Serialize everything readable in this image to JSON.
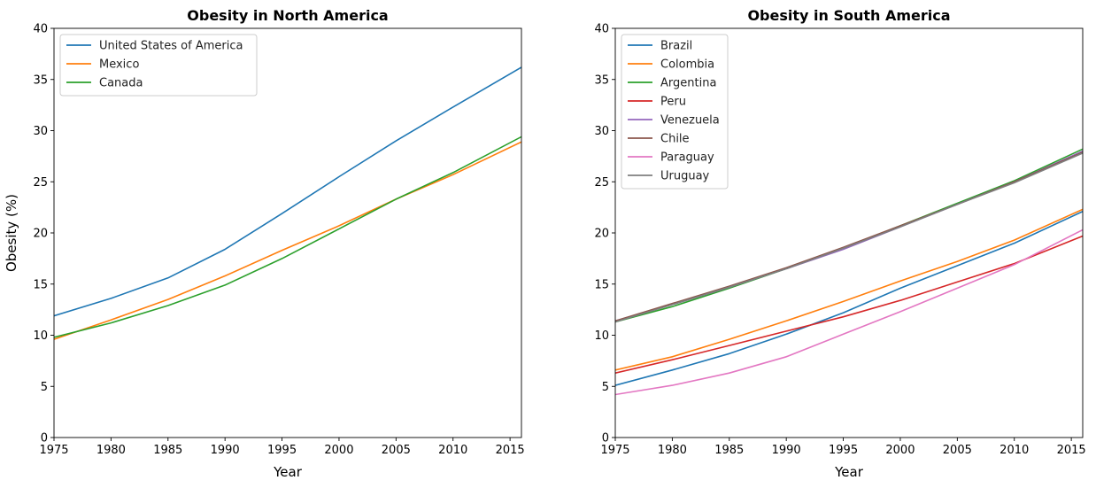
{
  "chart_data": [
    {
      "type": "line",
      "title": "Obesity in North America",
      "xlabel": "Year",
      "ylabel": "Obesity (%)",
      "xlim": [
        1975,
        2016
      ],
      "ylim": [
        0,
        40
      ],
      "xticks": [
        1975,
        1980,
        1985,
        1990,
        1995,
        2000,
        2005,
        2010,
        2015
      ],
      "yticks": [
        0,
        5,
        10,
        15,
        20,
        25,
        30,
        35,
        40
      ],
      "grid": false,
      "legend": "top-left",
      "x": [
        1975,
        1980,
        1985,
        1990,
        1995,
        2000,
        2005,
        2010,
        2016
      ],
      "series": [
        {
          "name": "United States of America",
          "color": "#1f77b4",
          "values": [
            11.9,
            13.6,
            15.6,
            18.4,
            21.9,
            25.5,
            29.0,
            32.3,
            36.2
          ]
        },
        {
          "name": "Mexico",
          "color": "#ff7f0e",
          "values": [
            9.6,
            11.5,
            13.5,
            15.8,
            18.3,
            20.7,
            23.3,
            25.7,
            28.9
          ]
        },
        {
          "name": "Canada",
          "color": "#2ca02c",
          "values": [
            9.8,
            11.2,
            12.9,
            14.9,
            17.5,
            20.4,
            23.3,
            25.9,
            29.4
          ]
        }
      ]
    },
    {
      "type": "line",
      "title": "Obesity in South America",
      "xlabel": "Year",
      "ylabel": "",
      "xlim": [
        1975,
        2016
      ],
      "ylim": [
        0,
        40
      ],
      "xticks": [
        1975,
        1980,
        1985,
        1990,
        1995,
        2000,
        2005,
        2010,
        2015
      ],
      "yticks": [
        0,
        5,
        10,
        15,
        20,
        25,
        30,
        35,
        40
      ],
      "grid": false,
      "legend": "top-left",
      "x": [
        1975,
        1980,
        1985,
        1990,
        1995,
        2000,
        2005,
        2010,
        2016
      ],
      "series": [
        {
          "name": "Brazil",
          "color": "#1f77b4",
          "values": [
            5.1,
            6.6,
            8.2,
            10.1,
            12.2,
            14.6,
            16.8,
            19.0,
            22.1
          ]
        },
        {
          "name": "Colombia",
          "color": "#ff7f0e",
          "values": [
            6.6,
            7.9,
            9.6,
            11.4,
            13.3,
            15.3,
            17.2,
            19.3,
            22.3
          ]
        },
        {
          "name": "Argentina",
          "color": "#2ca02c",
          "values": [
            11.3,
            12.8,
            14.6,
            16.5,
            18.5,
            20.7,
            22.9,
            25.1,
            28.2
          ]
        },
        {
          "name": "Peru",
          "color": "#d62728",
          "values": [
            6.3,
            7.6,
            9.0,
            10.4,
            11.8,
            13.4,
            15.2,
            17.0,
            19.7
          ]
        },
        {
          "name": "Venezuela",
          "color": "#9467bd",
          "values": [
            11.4,
            13.0,
            14.7,
            16.5,
            18.4,
            20.6,
            22.8,
            25.0,
            28.0
          ]
        },
        {
          "name": "Chile",
          "color": "#8c564b",
          "values": [
            11.4,
            13.1,
            14.8,
            16.6,
            18.6,
            20.7,
            22.8,
            25.0,
            27.9
          ]
        },
        {
          "name": "Paraguay",
          "color": "#e377c2",
          "values": [
            4.2,
            5.1,
            6.3,
            7.9,
            10.1,
            12.3,
            14.6,
            16.9,
            20.3
          ]
        },
        {
          "name": "Uruguay",
          "color": "#7f7f7f",
          "values": [
            11.3,
            13.0,
            14.7,
            16.5,
            18.5,
            20.6,
            22.8,
            24.9,
            27.8
          ]
        }
      ]
    }
  ]
}
